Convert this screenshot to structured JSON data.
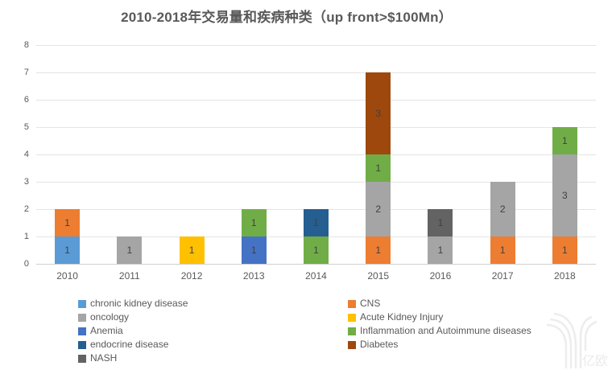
{
  "title": "2010-2018年交易量和疾病种类（up front>$100Mn）",
  "watermark": {
    "brand_text": "亿欧",
    "logo": "eo-logo"
  },
  "colors": {
    "title_text": "#595959",
    "axis_text": "#595959",
    "value_label": "#404040",
    "gridline": "#e4e4e4",
    "axis_line": "#cfcfcf",
    "watermark": "#ededed"
  },
  "chart_data": {
    "type": "bar",
    "stacked": true,
    "title": "2010-2018年交易量和疾病种类（up front>$100Mn）",
    "xlabel": "",
    "ylabel": "",
    "categories": [
      "2010",
      "2011",
      "2012",
      "2013",
      "2014",
      "2015",
      "2016",
      "2017",
      "2018"
    ],
    "series": [
      {
        "name": "chronic kidney disease",
        "color": "#5B9BD5",
        "values": [
          1,
          0,
          0,
          0,
          0,
          0,
          0,
          0,
          0
        ]
      },
      {
        "name": "CNS",
        "color": "#ED7D31",
        "values": [
          1,
          0,
          0,
          0,
          0,
          1,
          0,
          1,
          1
        ]
      },
      {
        "name": "oncology",
        "color": "#A5A5A5",
        "values": [
          0,
          1,
          0,
          0,
          0,
          2,
          1,
          2,
          3
        ]
      },
      {
        "name": "Acute Kidney Injury",
        "color": "#FFC000",
        "values": [
          0,
          0,
          1,
          0,
          0,
          0,
          0,
          0,
          0
        ]
      },
      {
        "name": "Anemia",
        "color": "#4472C4",
        "values": [
          0,
          0,
          0,
          1,
          0,
          0,
          0,
          0,
          0
        ]
      },
      {
        "name": "Inflammation and Autoimmune diseases",
        "color": "#70AD47",
        "values": [
          0,
          0,
          0,
          1,
          1,
          1,
          0,
          0,
          1
        ]
      },
      {
        "name": "endocrine disease",
        "color": "#255E91",
        "values": [
          0,
          0,
          0,
          0,
          1,
          0,
          0,
          0,
          0
        ]
      },
      {
        "name": "Diabetes",
        "color": "#9E480E",
        "values": [
          0,
          0,
          0,
          0,
          0,
          3,
          0,
          0,
          0
        ]
      },
      {
        "name": "NASH",
        "color": "#636363",
        "values": [
          0,
          0,
          0,
          0,
          0,
          0,
          1,
          0,
          0
        ]
      }
    ],
    "totals_per_category": [
      2,
      1,
      1,
      2,
      2,
      7,
      2,
      3,
      5
    ],
    "segment_labels_shown": true,
    "ylim": [
      0,
      8
    ],
    "yticks": [
      0,
      1,
      2,
      3,
      4,
      5,
      6,
      7,
      8
    ],
    "grid": "horizontal",
    "legend_position": "bottom, two columns"
  }
}
